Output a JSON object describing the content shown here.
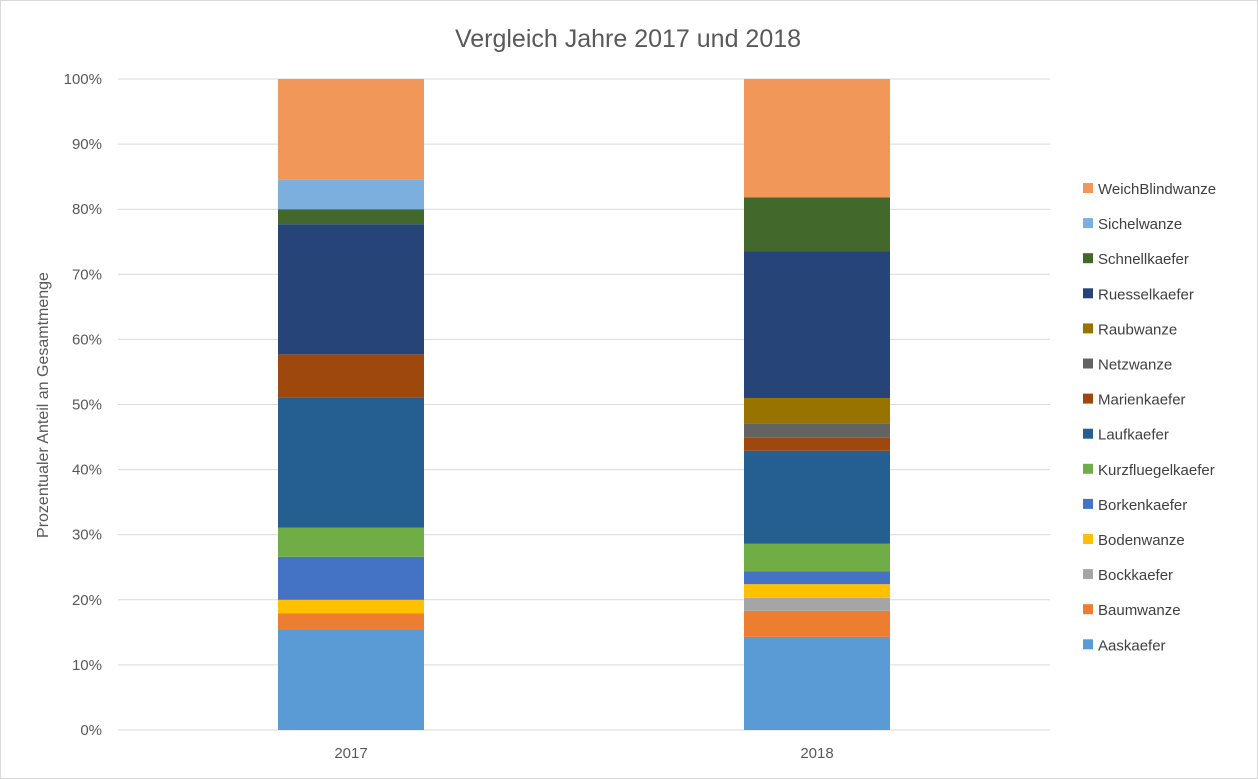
{
  "chart_data": {
    "type": "bar",
    "stacked": true,
    "percent_stacked": true,
    "title": "Vergleich Jahre 2017 und 2018",
    "xlabel": "",
    "ylabel": "Prozentualer Anteil an Gesamtmenge",
    "categories": [
      "2017",
      "2018"
    ],
    "ylim": [
      0,
      100
    ],
    "y_ticks": [
      "0%",
      "10%",
      "20%",
      "30%",
      "40%",
      "50%",
      "60%",
      "70%",
      "80%",
      "90%",
      "100%"
    ],
    "grid": true,
    "legend_position": "right",
    "series": [
      {
        "name": "Aaskaefer",
        "color": "#5b9bd5",
        "values": [
          15.5,
          14.3
        ]
      },
      {
        "name": "Baumwanze",
        "color": "#ed7d31",
        "values": [
          2.4,
          4.0
        ]
      },
      {
        "name": "Bockkaefer",
        "color": "#a5a5a5",
        "values": [
          0,
          2.0
        ]
      },
      {
        "name": "Bodenwanze",
        "color": "#ffc000",
        "values": [
          2.1,
          2.1
        ]
      },
      {
        "name": "Borkenkaefer",
        "color": "#4472c4",
        "values": [
          6.6,
          2.0
        ]
      },
      {
        "name": "Kurzfluegelkaefer",
        "color": "#70ad47",
        "values": [
          4.5,
          4.2
        ]
      },
      {
        "name": "Laufkaefer",
        "color": "#255e91",
        "values": [
          20.0,
          14.3
        ]
      },
      {
        "name": "Marienkaefer",
        "color": "#9e480e",
        "values": [
          6.6,
          2.0
        ]
      },
      {
        "name": "Netzwanze",
        "color": "#636363",
        "values": [
          0,
          2.2
        ]
      },
      {
        "name": "Raubwanze",
        "color": "#997300",
        "values": [
          0,
          3.9
        ]
      },
      {
        "name": "Ruesselkaefer",
        "color": "#264478",
        "values": [
          20.0,
          22.5
        ]
      },
      {
        "name": "Schnellkaefer",
        "color": "#43682b",
        "values": [
          2.3,
          8.3
        ]
      },
      {
        "name": "Sichelwanze",
        "color": "#7cafdd",
        "values": [
          4.5,
          0
        ]
      },
      {
        "name": "WeichBlindwanze",
        "color": "#f1975a",
        "values": [
          15.5,
          18.2
        ]
      }
    ]
  }
}
